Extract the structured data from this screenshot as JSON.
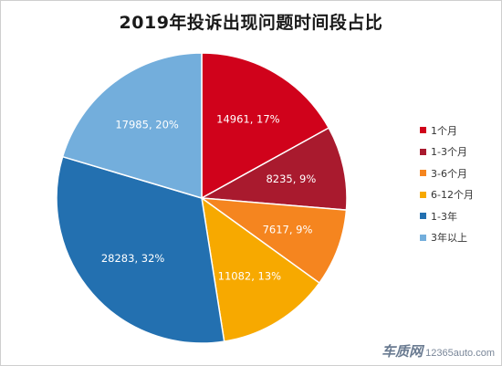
{
  "chart_data": {
    "type": "pie",
    "title": "2019年投诉出现问题时间段占比",
    "legend_position": "right",
    "slices": [
      {
        "name": "1个月",
        "value": 14961,
        "percent": "17%",
        "color": "#d0021b"
      },
      {
        "name": "1-3个月",
        "value": 8235,
        "percent": "9%",
        "color": "#a91a2e"
      },
      {
        "name": "3-6个月",
        "value": 7617,
        "percent": "9%",
        "color": "#f5851f"
      },
      {
        "name": "6-12个月",
        "value": 11082,
        "percent": "13%",
        "color": "#f7a900"
      },
      {
        "name": "1-3年",
        "value": 28283,
        "percent": "32%",
        "color": "#2370b0"
      },
      {
        "name": "3年以上",
        "value": 17985,
        "percent": "20%",
        "color": "#73aedc"
      }
    ]
  },
  "watermark": {
    "logo": "车质网",
    "url": "12365auto.com"
  }
}
